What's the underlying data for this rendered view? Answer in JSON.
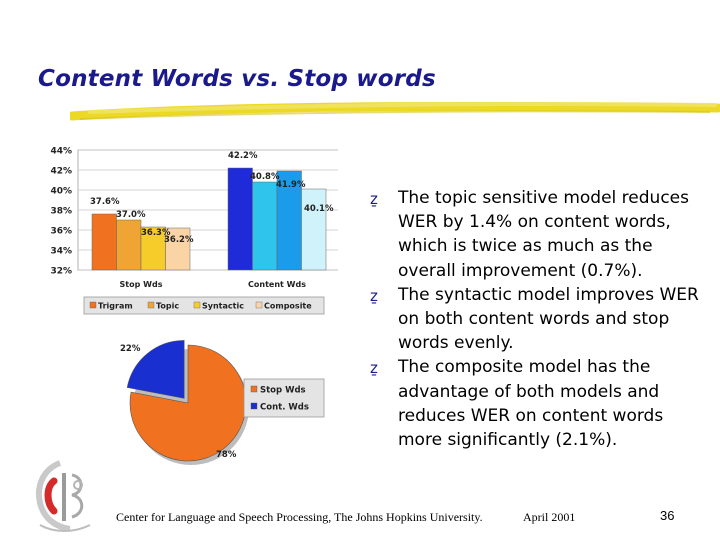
{
  "slide": {
    "title": "Content Words vs. Stop words",
    "bullets": [
      "The topic sensitive model reduces WER by 1.4% on content words, which is twice as much as the overall improvement (0.7%).",
      "The syntactic model improves WER on both content words and stop words evenly.",
      "The composite model has the advantage of both models and reduces WER on content words more significantly (2.1%)."
    ],
    "bullet_icon": "z-bullet-icon",
    "footer": {
      "org": "Center for Language and Speech Processing, The Johns Hopkins University.",
      "date": "April 2001",
      "page": "36"
    },
    "colors": {
      "title": "#1a1a8c",
      "highlighter": "#e8d200",
      "trigram": "#f0711f",
      "topic": "#f0a434",
      "syntactic": "#f5cc2a",
      "composite": "#fbd4a6",
      "content_trigram": "#1f2ad8",
      "content_topic": "#2fc4ec",
      "content_syntactic": "#1a9cea",
      "content_composite": "#cff2fb",
      "pie_stop": "#f0711f",
      "pie_content": "#1a2fcf"
    }
  },
  "chart_data": [
    {
      "type": "bar",
      "categories": [
        "Stop Wds",
        "Content Wds"
      ],
      "series": [
        {
          "name": "Trigram",
          "values": [
            37.6,
            42.2
          ]
        },
        {
          "name": "Topic",
          "values": [
            37.0,
            40.8
          ]
        },
        {
          "name": "Syntactic",
          "values": [
            36.3,
            41.9
          ]
        },
        {
          "name": "Composite",
          "values": [
            36.2,
            40.1
          ]
        }
      ],
      "data_labels": [
        [
          "37.6%",
          "37.0%",
          "36.3%",
          "36.2%"
        ],
        [
          "42.2%",
          "40.8%",
          "41.9%",
          "40.1%"
        ]
      ],
      "ylim": [
        32,
        44
      ],
      "yticks": [
        "32%",
        "34%",
        "36%",
        "38%",
        "40%",
        "42%",
        "44%"
      ],
      "grid": true,
      "legend": "bottom"
    },
    {
      "type": "pie",
      "labels": [
        "Stop Wds",
        "Cont. Wds"
      ],
      "values": [
        78,
        22
      ],
      "data_labels": [
        "78%",
        "22%"
      ],
      "legend": "right"
    }
  ]
}
